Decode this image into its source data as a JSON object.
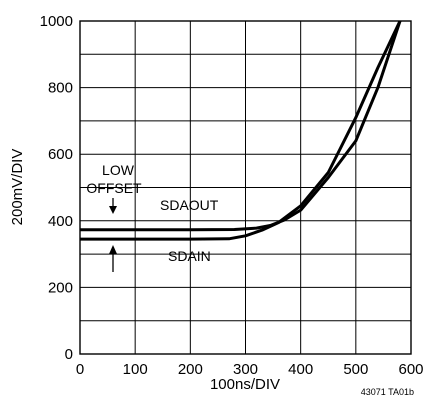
{
  "chart_data": {
    "type": "line",
    "xlabel": "100ns/DIV",
    "ylabel": "200mV/DIV",
    "xlim": [
      0,
      600
    ],
    "ylim": [
      0,
      1000
    ],
    "x_ticks": [
      "0",
      "100",
      "200",
      "300",
      "400",
      "500",
      "600"
    ],
    "y_ticks": [
      "0",
      "200",
      "400",
      "600",
      "800",
      "1000"
    ],
    "grid": true,
    "series": [
      {
        "name": "SDAOUT",
        "x": [
          0,
          100,
          200,
          280,
          320,
          345,
          370,
          400,
          450,
          500,
          540,
          580
        ],
        "y": [
          373,
          373,
          373,
          374,
          378,
          386,
          402,
          432,
          530,
          640,
          800,
          1000
        ]
      },
      {
        "name": "SDAIN",
        "x": [
          0,
          100,
          200,
          270,
          300,
          330,
          360,
          400,
          450,
          500,
          540,
          580
        ],
        "y": [
          345,
          345,
          345,
          346,
          355,
          372,
          395,
          445,
          545,
          710,
          860,
          1000
        ]
      }
    ],
    "annotations": {
      "low_offset_line1": "LOW",
      "low_offset_line2": "OFFSET",
      "sdaout_label": "SDAOUT",
      "sdain_label": "SDAIN",
      "figure_code": "43071 TA01b"
    }
  }
}
